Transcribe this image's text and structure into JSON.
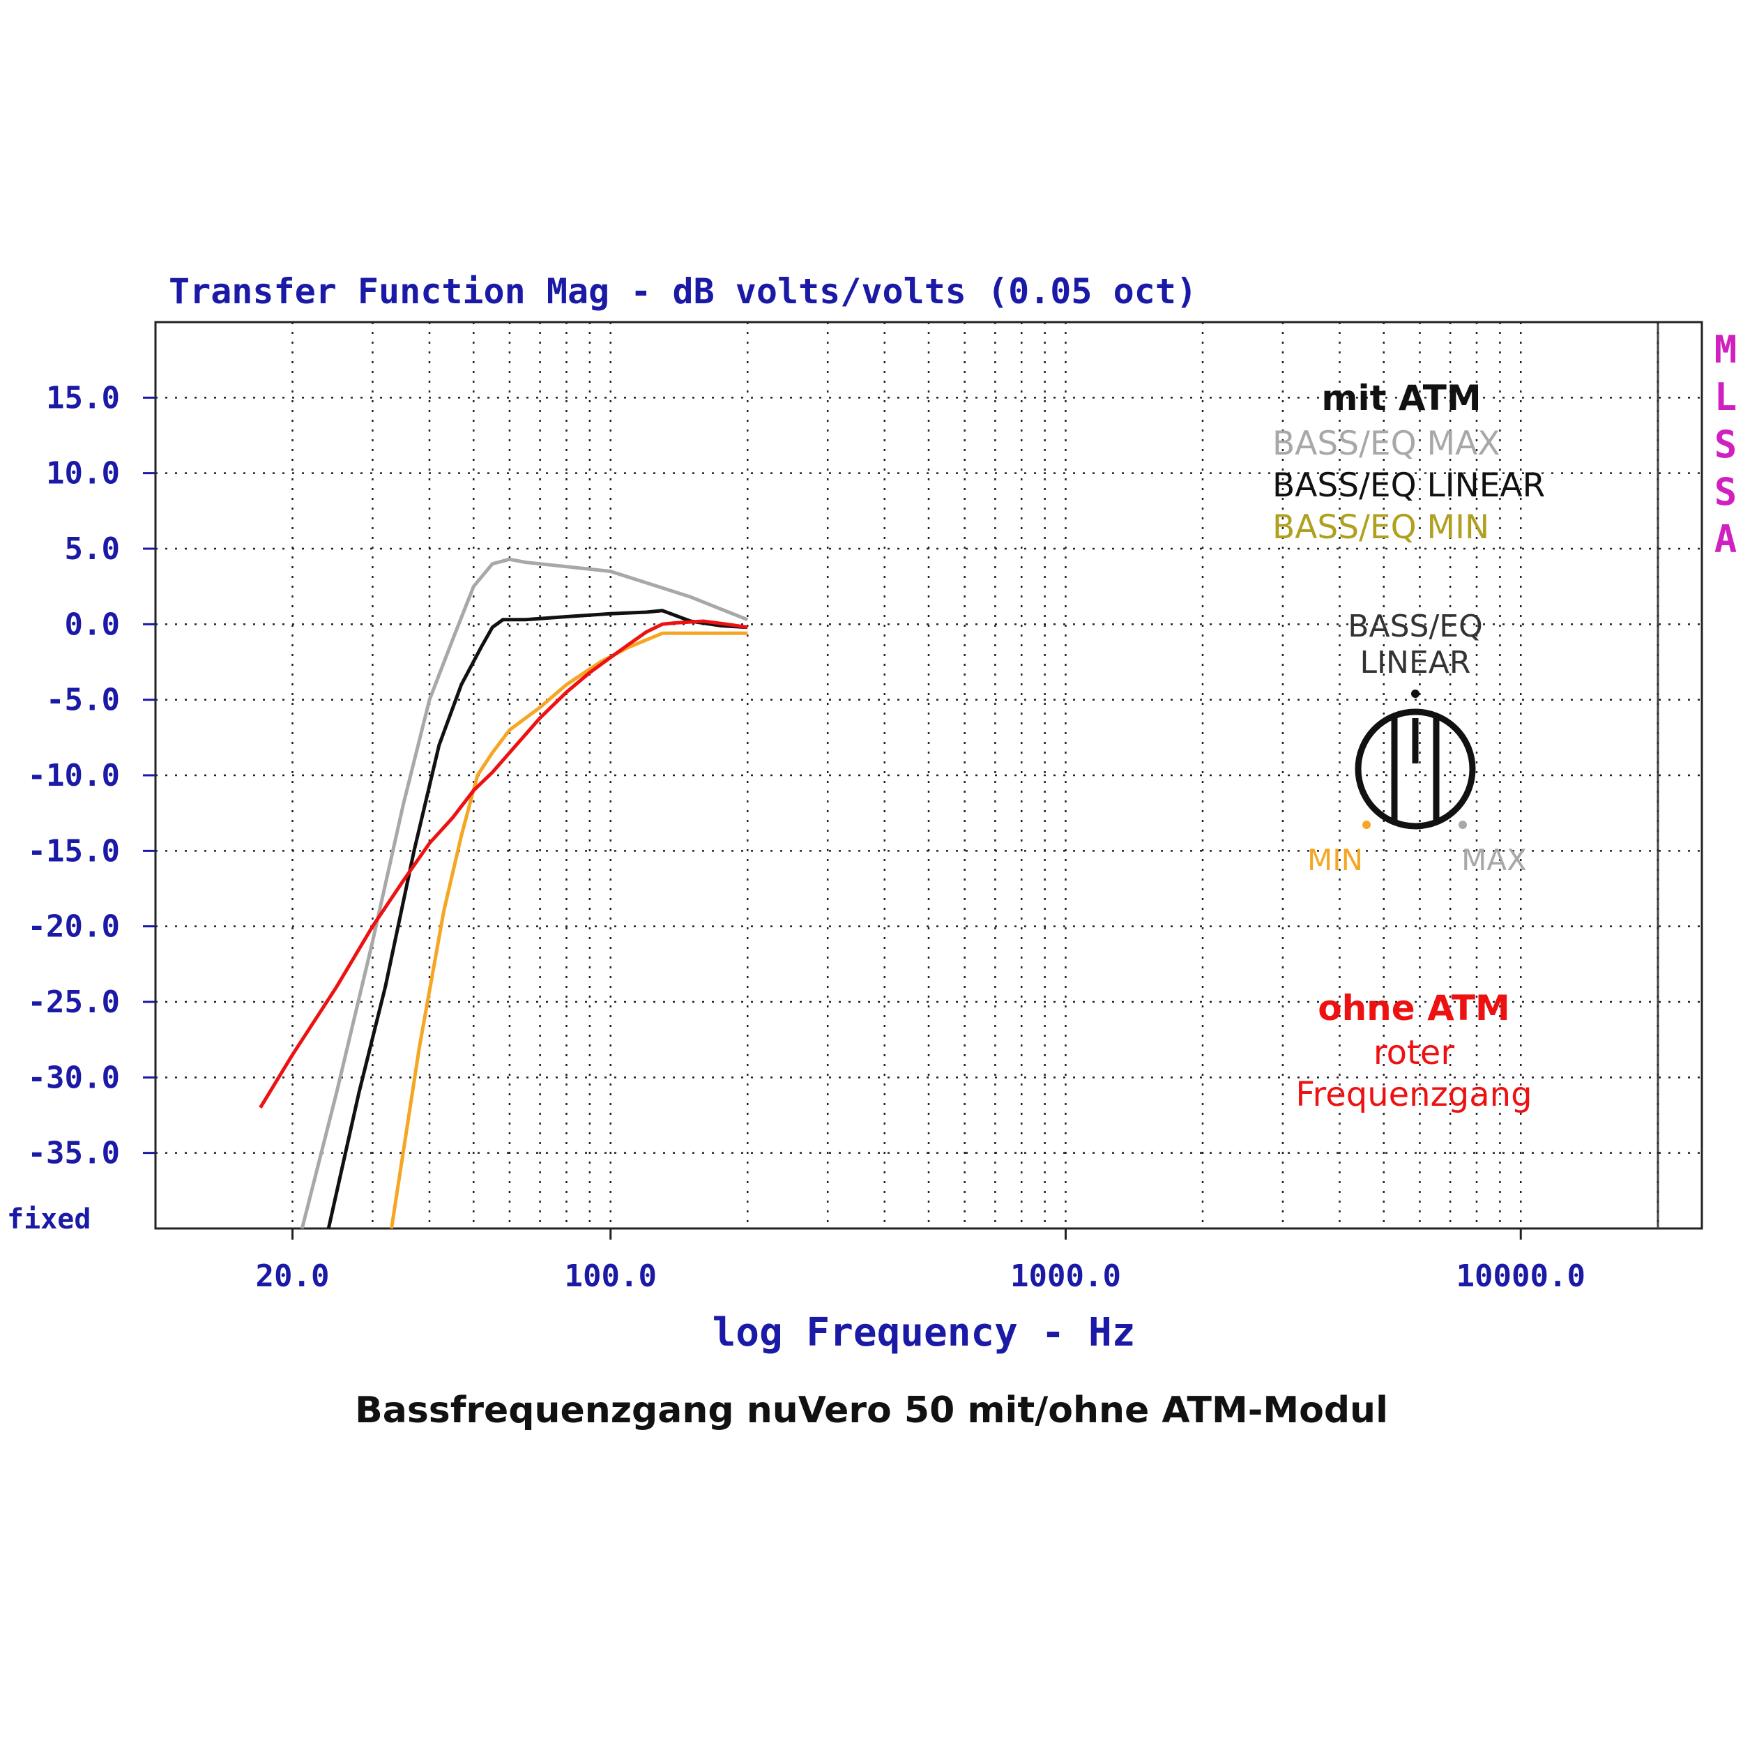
{
  "colors": {
    "axis_text": "#1a1aa6",
    "mlssa": "#d020c0",
    "max": "#a8a8a8",
    "linear": "#111111",
    "min": "#f5a623",
    "min_label": "#b0a020",
    "ohne": "#ee1111",
    "grid": "#222222"
  },
  "header_title": "Transfer Function Mag - dB volts/volts (0.05 oct)",
  "side_label": [
    "M",
    "L",
    "S",
    "S",
    "A"
  ],
  "fixed_label": "fixed",
  "caption": "Bassfrequenzgang nuVero 50 mit/ohne ATM-Modul",
  "legend": {
    "heading": "mit ATM",
    "max_label": "BASS/EQ MAX",
    "linear_label": "BASS/EQ LINEAR",
    "min_label": "BASS/EQ MIN"
  },
  "knob": {
    "title_line1": "BASS/EQ",
    "title_line2": "LINEAR",
    "min_text": "MIN",
    "max_text": "MAX",
    "icon": "rotary-knob-icon"
  },
  "ohne": {
    "heading": "ohne ATM",
    "line1": "roter",
    "line2": "Frequenzgang"
  },
  "chart_data": {
    "type": "line",
    "title": "Transfer Function Mag - dB volts/volts (0.05 oct)",
    "xlabel": "log Frequency - Hz",
    "ylabel": "",
    "x_scale": "log",
    "xlim": [
      10,
      25000
    ],
    "ylim": [
      -40,
      20
    ],
    "x_ticks": [
      20,
      100,
      1000,
      10000
    ],
    "x_tick_labels": [
      "20.0",
      "100.0",
      "1000.0",
      "10000.0"
    ],
    "y_ticks": [
      15,
      10,
      5,
      0,
      -5,
      -10,
      -15,
      -20,
      -25,
      -30,
      -35
    ],
    "y_tick_labels": [
      "15.0",
      "10.0",
      "5.0",
      "0.0",
      "-5.0",
      "-10.0",
      "-15.0",
      "-20.0",
      "-25.0",
      "-30.0",
      "-35.0"
    ],
    "grid": true,
    "series": [
      {
        "name": "BASS/EQ MAX",
        "color": "#a8a8a8",
        "x": [
          21,
          25,
          30,
          35,
          40,
          45,
          50,
          55,
          60,
          65,
          70,
          100,
          150,
          200
        ],
        "y": [
          -40,
          -31,
          -21,
          -12,
          -5,
          -1,
          2.5,
          4,
          4.3,
          4.1,
          4.0,
          3.5,
          1.8,
          0.3
        ]
      },
      {
        "name": "BASS/EQ LINEAR",
        "color": "#111111",
        "x": [
          24,
          28,
          32,
          37,
          42,
          47,
          52,
          55,
          58,
          65,
          80,
          100,
          120,
          130,
          150,
          175,
          200
        ],
        "y": [
          -40,
          -31,
          -24,
          -15,
          -8,
          -4,
          -1.5,
          -0.2,
          0.3,
          0.3,
          0.5,
          0.7,
          0.8,
          0.9,
          0.2,
          -0.1,
          -0.2
        ]
      },
      {
        "name": "BASS/EQ MIN",
        "color": "#f5a623",
        "x": [
          33,
          38,
          43,
          47,
          51,
          55,
          60,
          70,
          80,
          95,
          110,
          130,
          150,
          200
        ],
        "y": [
          -40,
          -28,
          -19,
          -14,
          -10,
          -8.5,
          -7,
          -5.5,
          -4,
          -2.5,
          -1.5,
          -0.6,
          -0.6,
          -0.6
        ]
      },
      {
        "name": "ohne ATM",
        "color": "#ee1111",
        "x": [
          17,
          20,
          25,
          30,
          35,
          40,
          45,
          50,
          55,
          60,
          70,
          80,
          90,
          100,
          110,
          120,
          130,
          140,
          160,
          180,
          200
        ],
        "y": [
          -32,
          -28.5,
          -24,
          -20,
          -17,
          -14.5,
          -12.8,
          -11,
          -9.8,
          -8.5,
          -6.2,
          -4.5,
          -3.2,
          -2.2,
          -1.3,
          -0.5,
          0.0,
          0.1,
          0.2,
          0.0,
          -0.2
        ]
      }
    ]
  }
}
